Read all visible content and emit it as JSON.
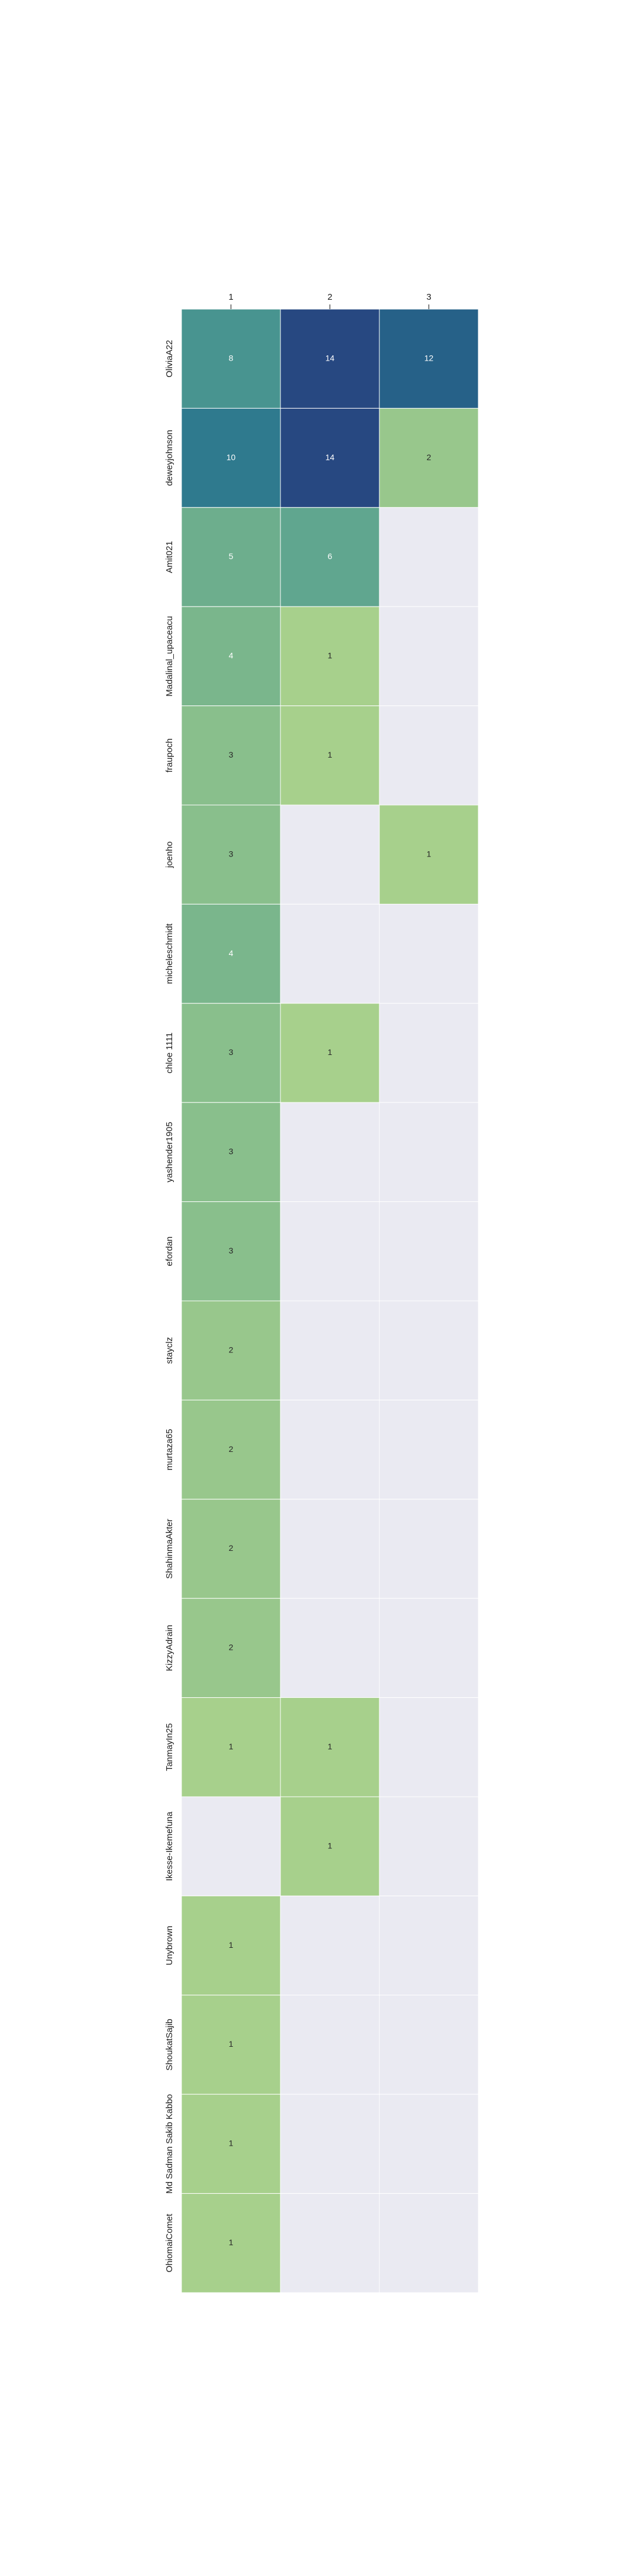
{
  "chart_data": {
    "type": "heatmap",
    "title": "",
    "xlabel": "",
    "ylabel": "",
    "x_categories": [
      "1",
      "2",
      "3"
    ],
    "y_categories": [
      "OliviaA22",
      "deweyjohnson",
      "Amit021",
      "Madalinal_upaceacu",
      "fraupoch",
      "joenho",
      "micheleschmidt",
      "chloe 1111",
      "yashender1905",
      "efordan",
      "stayclz",
      "murtaza65",
      "ShahinmaAkter",
      "KizzyAdrain",
      "TanmayIn25",
      "Ikesse-Ikemefuna",
      "Unybrown",
      "ShoukatSajib",
      "Md Sadman Sakib Kabbo",
      "OhiomaiComet"
    ],
    "values": [
      [
        8,
        14,
        12
      ],
      [
        10,
        14,
        2
      ],
      [
        5,
        6,
        null
      ],
      [
        4,
        1,
        null
      ],
      [
        3,
        1,
        null
      ],
      [
        3,
        null,
        1
      ],
      [
        4,
        null,
        null
      ],
      [
        3,
        1,
        null
      ],
      [
        3,
        null,
        null
      ],
      [
        3,
        null,
        null
      ],
      [
        2,
        null,
        null
      ],
      [
        2,
        null,
        null
      ],
      [
        2,
        null,
        null
      ],
      [
        2,
        null,
        null
      ],
      [
        1,
        1,
        null
      ],
      [
        null,
        1,
        null
      ],
      [
        1,
        null,
        null
      ],
      [
        1,
        null,
        null
      ],
      [
        1,
        null,
        null
      ],
      [
        1,
        null,
        null
      ]
    ],
    "colormap": "crest",
    "missing_color": "#eaeaf2",
    "grid_color": "#ffffff",
    "x_tick_position": "top",
    "legend": "none"
  }
}
